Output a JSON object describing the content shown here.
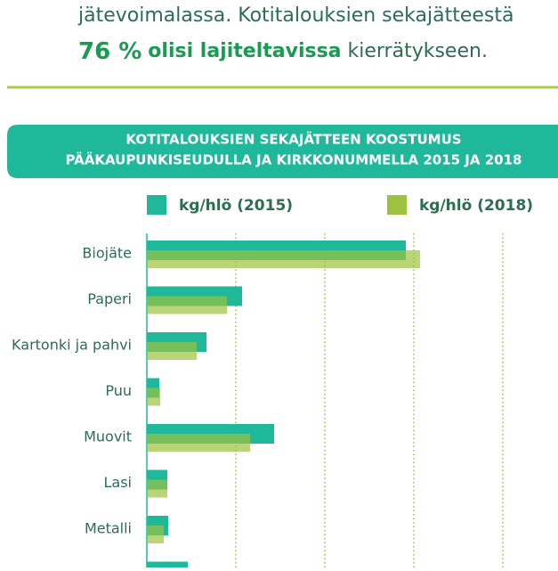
{
  "intro": {
    "line1": "jätevoimalassa. Kotitalouksien sekajätteestä",
    "line2": [
      "76 %",
      "olisi lajiteltavissa",
      "kierrätykseen."
    ]
  },
  "chart_data": {
    "type": "bar",
    "orientation": "horizontal",
    "title": [
      "KOTITALOUKSIEN SEKAJÄTTEEN KOOSTUMUS",
      "PÄÄKAUPUNKISEUDULLA JA KIRKKONUMMELLA 2015 JA 2018"
    ],
    "categories": [
      "Biojäte",
      "Paperi",
      "Kartonki ja pahvi",
      "Puu",
      "Muovit",
      "Lasi",
      "Metalli",
      null
    ],
    "series": [
      {
        "name": "kg/hlö (2015)",
        "color": "#1fb89a",
        "values": [
          58.2,
          21.4,
          13.4,
          2.8,
          28.6,
          4.6,
          4.8,
          9.2
        ]
      },
      {
        "name": "kg/hlö (2018)",
        "color": "#9cc23f",
        "values": [
          61.4,
          18,
          11.2,
          3,
          23.2,
          4.6,
          3.8,
          null
        ]
      }
    ],
    "xlim": [
      0,
      80
    ],
    "xticks": [
      0,
      20,
      40,
      60,
      80
    ],
    "grid": true
  }
}
